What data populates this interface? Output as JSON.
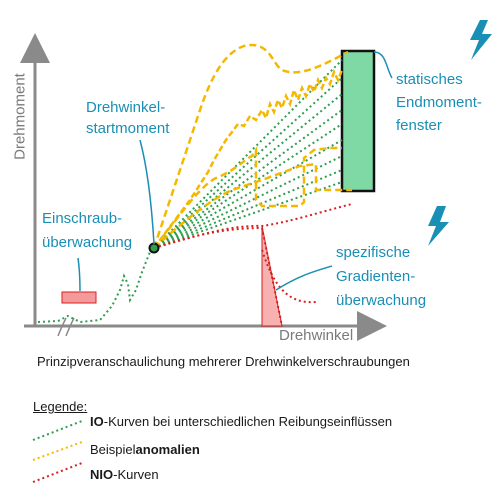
{
  "axes": {
    "y_label": "Drehmoment",
    "x_label": "Drehwinkel"
  },
  "annotations": {
    "start_moment": [
      "Drehwinkel-",
      "startmoment"
    ],
    "end_window": [
      "statisches",
      "Endmoment-",
      "fenster"
    ],
    "screw_monitor": [
      "Einschraub-",
      "überwachung"
    ],
    "gradient_monitor": [
      "spezifische",
      "Gradienten-",
      "überwachung"
    ]
  },
  "caption": "Prinzipveranschaulichung mehrerer Drehwinkelverschraubungen",
  "legend": {
    "title": "Legende:",
    "items": [
      {
        "bold": "IO",
        "text": "-Kurven bei unterschiedlichen Reibungseinflüssen",
        "bold_first": true,
        "color": "#2e9e4f"
      },
      {
        "bold": "anomalien",
        "text": "Beispiel",
        "bold_first": false,
        "color": "#f5b800"
      },
      {
        "bold": "NIO",
        "text": "-Kurven",
        "bold_first": true,
        "color": "#d62020"
      }
    ]
  },
  "colors": {
    "io": "#2e9e4f",
    "anomaly": "#f5b800",
    "nio": "#d62020",
    "annotation": "#1a8fb5",
    "window_fill": "#7fd9a5",
    "lightning": "#1a8fb5"
  },
  "icons": [
    "lightning-icon",
    "lightning-icon"
  ]
}
